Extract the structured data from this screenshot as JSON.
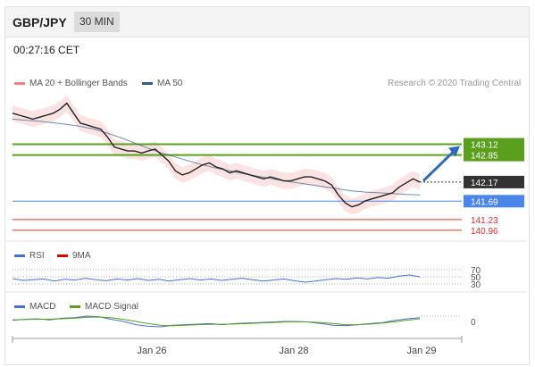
{
  "header": {
    "pair": "GBP/JPY",
    "timeframe": "30 MIN"
  },
  "timestamp": "00:27:16 CET",
  "credit": "Research © 2020 Trading Central",
  "legends": {
    "ma20": "MA 20 + Bollinger Bands",
    "ma50": "MA 50",
    "rsi": "RSI",
    "rsi_ma": "9MA",
    "macd": "MACD",
    "macd_signal": "MACD Signal"
  },
  "colors": {
    "bollinger": "#f08080",
    "ma50": "#2f5f8a",
    "resistance": "#5aa01e",
    "pivot": "#4a86e8",
    "support": "#e03030",
    "current": "#333333",
    "rsi": "#4a6fd0",
    "rsi_ma": "#e00000",
    "macd": "#4a6fd0",
    "macd_signal": "#5aa01e"
  },
  "chart_data": [
    {
      "type": "line",
      "panel": "price",
      "x_ticks": [
        "Jan 26",
        "Jan 28",
        "Jan 29"
      ],
      "ylim": [
        140.8,
        144.5
      ],
      "price": [
        143.9,
        143.85,
        143.8,
        143.75,
        143.8,
        143.85,
        143.9,
        144.0,
        144.15,
        143.9,
        143.65,
        143.6,
        143.55,
        143.5,
        143.3,
        143.05,
        143.0,
        142.95,
        142.95,
        142.9,
        142.95,
        143.0,
        142.85,
        142.7,
        142.45,
        142.35,
        142.4,
        142.5,
        142.6,
        142.65,
        142.55,
        142.5,
        142.4,
        142.45,
        142.4,
        142.35,
        142.3,
        142.25,
        142.3,
        142.25,
        142.2,
        142.2,
        142.25,
        142.3,
        142.3,
        142.25,
        142.2,
        142.1,
        141.85,
        141.65,
        141.55,
        141.6,
        141.7,
        141.75,
        141.8,
        141.85,
        141.9,
        142.05,
        142.15,
        142.25,
        142.17
      ],
      "horizontal_levels": [
        {
          "label": "143.12",
          "kind": "resistance"
        },
        {
          "label": "142.85",
          "kind": "resistance"
        },
        {
          "label": "142.17",
          "kind": "current"
        },
        {
          "label": "141.69",
          "kind": "pivot"
        },
        {
          "label": "141.23",
          "kind": "support"
        },
        {
          "label": "140.96",
          "kind": "support"
        }
      ],
      "ma50": [
        143.75,
        143.72,
        143.7,
        143.66,
        143.62,
        143.57,
        143.5,
        143.4,
        143.28,
        143.15,
        143.02,
        142.9,
        142.8,
        142.7,
        142.6,
        142.52,
        142.45,
        142.38,
        142.32,
        142.26,
        142.2,
        142.15,
        142.1,
        142.05,
        142.0,
        141.95,
        141.92,
        141.9,
        141.88,
        141.86,
        141.85
      ],
      "forecast_arrow": {
        "from": 142.2,
        "to": 143.12
      }
    },
    {
      "type": "line",
      "panel": "rsi",
      "levels": [
        70,
        50,
        30
      ],
      "ylim": [
        20,
        80
      ],
      "series": [
        {
          "key": "rsi",
          "values": [
            45,
            40,
            42,
            44,
            38,
            43,
            41,
            46,
            42,
            39,
            44,
            41,
            45,
            40,
            43,
            38,
            42,
            45,
            41,
            44,
            40,
            43,
            46,
            42,
            38,
            41,
            44,
            39,
            35,
            38,
            42,
            45,
            43,
            47,
            44,
            48,
            46,
            52,
            55,
            50
          ]
        },
        {
          "key": "rsi_ma",
          "values": []
        }
      ]
    },
    {
      "type": "line",
      "panel": "macd",
      "levels": [
        0
      ],
      "ylim": [
        -1,
        1
      ],
      "series": [
        {
          "key": "macd",
          "values": [
            0.1,
            0.2,
            0.25,
            0.15,
            0.3,
            0.35,
            0.5,
            0.45,
            0.2,
            0.0,
            -0.3,
            -0.45,
            -0.5,
            -0.35,
            -0.3,
            -0.25,
            -0.2,
            -0.3,
            -0.2,
            -0.15,
            -0.1,
            -0.05,
            0.0,
            0.0,
            -0.05,
            -0.2,
            -0.35,
            -0.4,
            -0.3,
            -0.2,
            -0.1,
            0.1,
            0.25,
            0.35
          ]
        },
        {
          "key": "macd_signal",
          "values": [
            0.15,
            0.18,
            0.2,
            0.22,
            0.25,
            0.3,
            0.38,
            0.42,
            0.35,
            0.2,
            0.0,
            -0.2,
            -0.35,
            -0.4,
            -0.35,
            -0.3,
            -0.27,
            -0.26,
            -0.24,
            -0.2,
            -0.15,
            -0.1,
            -0.05,
            -0.02,
            -0.04,
            -0.1,
            -0.2,
            -0.3,
            -0.3,
            -0.25,
            -0.15,
            -0.02,
            0.12,
            0.25
          ]
        }
      ]
    }
  ]
}
